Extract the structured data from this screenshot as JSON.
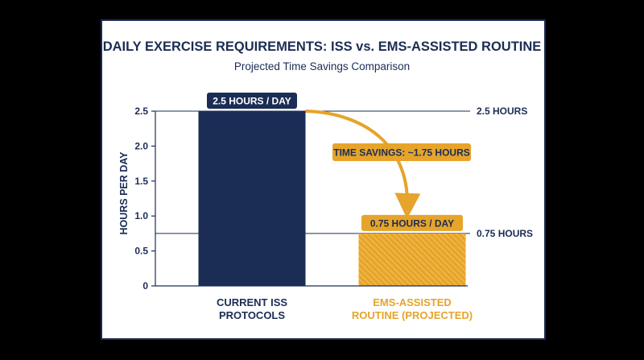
{
  "chart_data": {
    "type": "bar",
    "title": "DAILY EXERCISE REQUIREMENTS: ISS vs. EMS-ASSISTED ROUTINE",
    "subtitle": "Projected Time Savings Comparison",
    "ylabel": "HOURS PER DAY",
    "xlabel": "",
    "ylim": [
      0,
      2.5
    ],
    "yticks": [
      {
        "value": 0,
        "label": "0"
      },
      {
        "value": 0.5,
        "label": "0.5"
      },
      {
        "value": 1.0,
        "label": "1.0"
      },
      {
        "value": 1.5,
        "label": "1.5"
      },
      {
        "value": 2.0,
        "label": "2.0"
      },
      {
        "value": 2.5,
        "label": "2.5"
      }
    ],
    "grid": false,
    "categories": [
      {
        "lines": [
          "CURRENT ISS",
          "PROTOCOLS"
        ]
      },
      {
        "lines": [
          "EMS-ASSISTED",
          "ROUTINE (PROJECTED)"
        ]
      }
    ],
    "values": [
      2.5,
      0.75
    ],
    "data_labels": [
      "2.5 HOURS / DAY",
      "0.75 HOURS / DAY"
    ],
    "reference_lines": [
      {
        "value": 2.5,
        "label": "2.5 HOURS"
      },
      {
        "value": 0.75,
        "label": "0.75 HOURS"
      }
    ],
    "annotation": {
      "label": "TIME SAVINGS: ~1.75 HOURS",
      "from_value": 2.5,
      "to_value": 0.75
    },
    "colors": {
      "navy": "#1b2d55",
      "gold": "#e6a42a",
      "gold_hatch": "#f3c25c",
      "panel": "#ffffff",
      "background": "#000000",
      "frame": "#1b2d55"
    }
  }
}
